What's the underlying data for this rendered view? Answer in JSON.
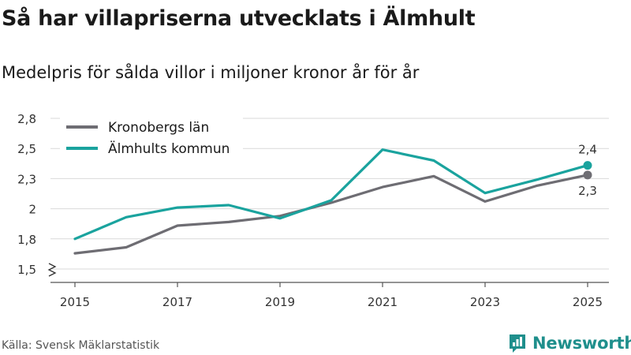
{
  "header": {
    "title": "Så har villapriserna utvecklats i Älmhult",
    "subtitle": "Medelpris för sålda villor i miljoner kronor år för år"
  },
  "footer": {
    "source": "Källa: Svensk Mäklarstatistik",
    "brand": "Newsworthy"
  },
  "colors": {
    "kronoberg": "#6e6d73",
    "almhult": "#1aa39e",
    "grid": "#d9d9d9",
    "axis": "#555555",
    "brand": "#1f8f8c"
  },
  "chart_data": {
    "type": "line",
    "title": "Så har villapriserna utvecklats i Älmhult",
    "subtitle": "Medelpris för sålda villor i miljoner kronor år för år",
    "xlabel": "",
    "ylabel": "",
    "x": [
      2015,
      2016,
      2017,
      2018,
      2019,
      2020,
      2021,
      2022,
      2023,
      2024,
      2025
    ],
    "x_ticks": [
      2015,
      2017,
      2019,
      2021,
      2023,
      2025
    ],
    "x_tick_labels": [
      "2015",
      "2017",
      "2019",
      "2021",
      "2023",
      "2025"
    ],
    "y_ticks": [
      1.5,
      1.75,
      2.0,
      2.25,
      2.5,
      2.75
    ],
    "y_tick_labels": [
      "1,5",
      "1,8",
      "2",
      "2,3",
      "2,5",
      "2,8"
    ],
    "ylim": [
      1.5,
      2.75
    ],
    "y_axis_break": true,
    "grid": true,
    "legend_position": "top-left",
    "series": [
      {
        "key": "kronoberg",
        "name": "Kronobergs län",
        "values": [
          1.63,
          1.68,
          1.86,
          1.89,
          1.94,
          2.05,
          2.18,
          2.27,
          2.06,
          2.19,
          2.28
        ],
        "end_label": "2,3",
        "end_label_position": "below"
      },
      {
        "key": "almhult",
        "name": "Älmhults kommun",
        "values": [
          1.75,
          1.93,
          2.01,
          2.03,
          1.92,
          2.07,
          2.49,
          2.4,
          2.13,
          2.24,
          2.36
        ],
        "end_label": "2,4",
        "end_label_position": "above"
      }
    ]
  }
}
